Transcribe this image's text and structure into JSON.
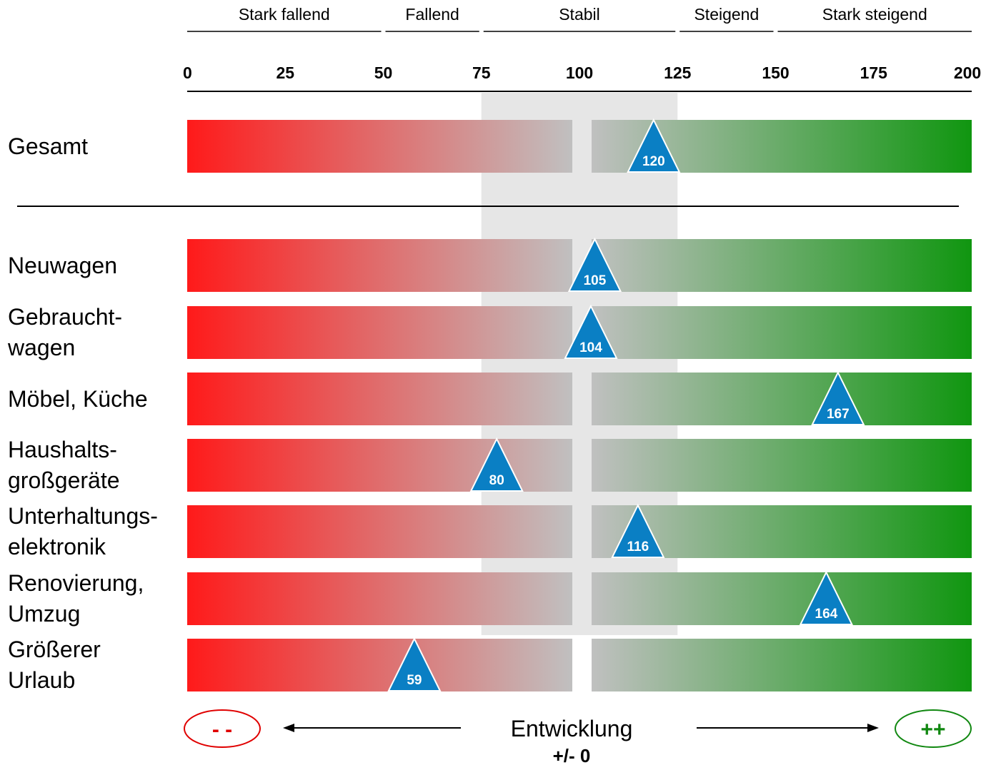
{
  "chart_data": {
    "type": "bar",
    "title": "",
    "xlim": [
      0,
      200
    ],
    "ticks": [
      0,
      25,
      50,
      75,
      100,
      125,
      150,
      175,
      200
    ],
    "stable_band": [
      75,
      125
    ],
    "neutral_value": 100,
    "bands": [
      {
        "label": "Stark fallend",
        "range": [
          0,
          50
        ]
      },
      {
        "label": "Fallend",
        "range": [
          50,
          75
        ]
      },
      {
        "label": "Stabil",
        "range": [
          75,
          125
        ]
      },
      {
        "label": "Steigend",
        "range": [
          125,
          150
        ]
      },
      {
        "label": "Stark steigend",
        "range": [
          150,
          200
        ]
      }
    ],
    "categories": [
      "Gesamt",
      "Neuwagen",
      "Gebraucht-\nwagen",
      "Möbel, Küche",
      "Haushalts-\ngroßgeräte",
      "Unterhaltungs-\nelektronik",
      "Renovierung,\nUmzug",
      "Größerer\nUrlaub"
    ],
    "values": [
      120,
      105,
      104,
      167,
      80,
      116,
      164,
      59
    ],
    "colors": {
      "negative": "#ff1a1a",
      "neutral": "#c0c0c0",
      "positive": "#109610",
      "marker": "#0a7fc4",
      "stable_band": "#e6e6e6"
    },
    "footer": {
      "minus_label": "- -",
      "plus_label": "++",
      "center_label": "Entwicklung",
      "center_sublabel": "+/- 0"
    }
  }
}
